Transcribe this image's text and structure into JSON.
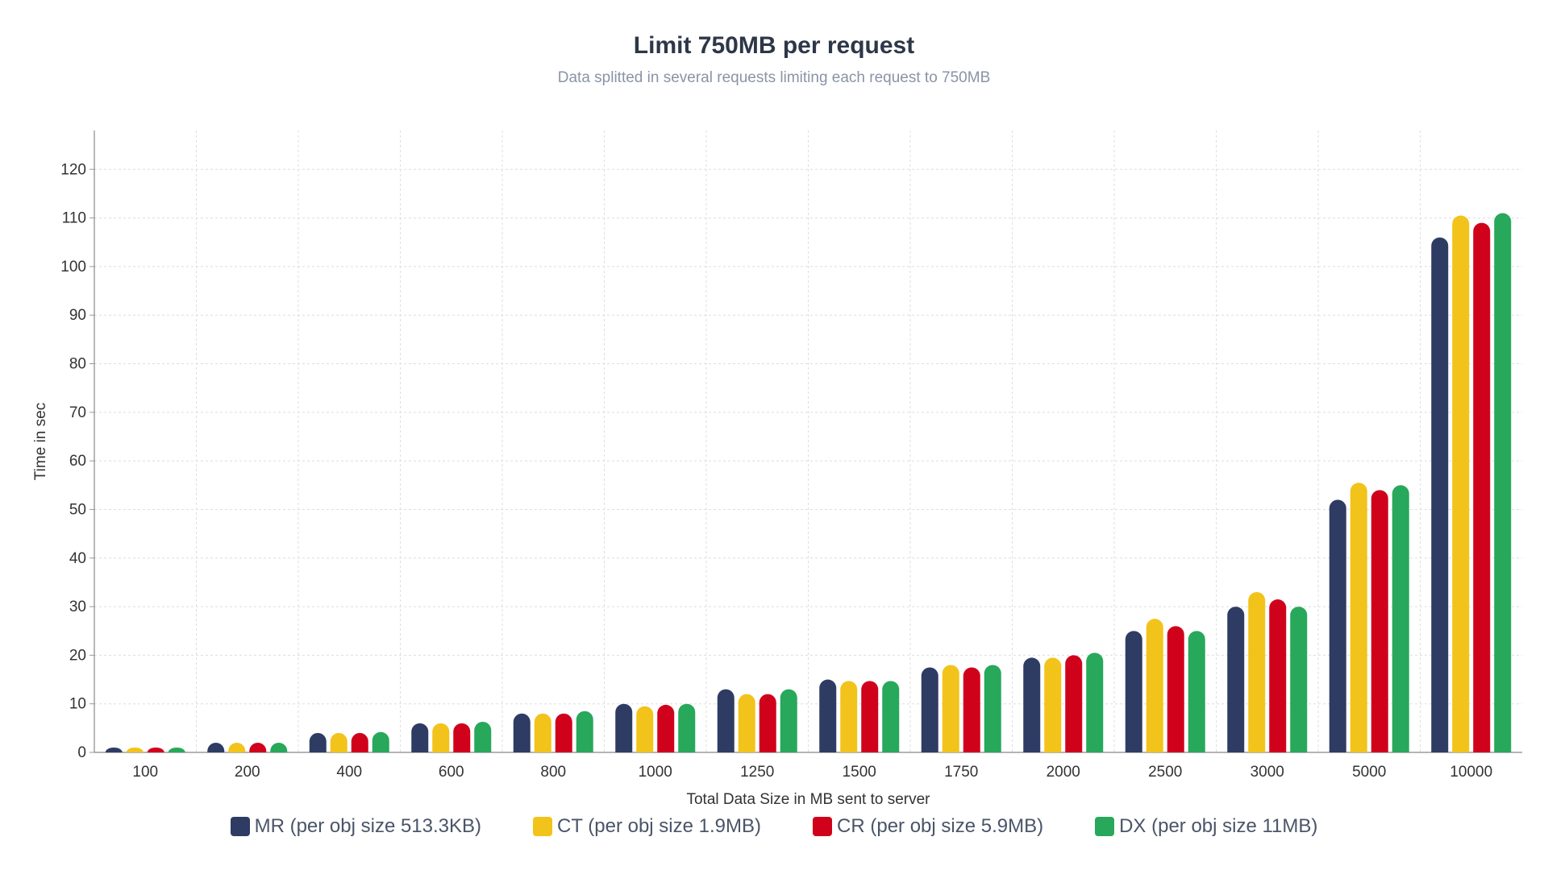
{
  "chart_data": {
    "type": "bar",
    "title": "Limit 750MB per request",
    "subtitle": "Data splitted in several requests limiting each request to 750MB",
    "xlabel": "Total Data Size in MB sent to server",
    "ylabel": "Time in sec",
    "ylim": [
      0,
      128
    ],
    "yticks": [
      0,
      10,
      20,
      30,
      40,
      50,
      60,
      70,
      80,
      90,
      100,
      110,
      120
    ],
    "grid": true,
    "legend_position": "bottom",
    "categories": [
      "100",
      "200",
      "400",
      "600",
      "800",
      "1000",
      "1250",
      "1500",
      "1750",
      "2000",
      "2500",
      "3000",
      "5000",
      "10000"
    ],
    "series": [
      {
        "name": "MR (per obj size 513.3KB)",
        "color": "#2e3c64",
        "values": [
          1,
          2,
          4,
          6,
          8,
          10,
          13,
          15,
          17.5,
          19.5,
          25,
          30,
          52,
          106
        ]
      },
      {
        "name": "CT (per obj size 1.9MB)",
        "color": "#f2c31a",
        "values": [
          1,
          2,
          4,
          6,
          8,
          9.5,
          12,
          14.7,
          18,
          19.5,
          27.5,
          33,
          55.5,
          110.5
        ]
      },
      {
        "name": "CR (per obj size 5.9MB)",
        "color": "#d0021b",
        "values": [
          1,
          2,
          4,
          6,
          8,
          9.8,
          12,
          14.7,
          17.5,
          20,
          26,
          31.5,
          54,
          109
        ]
      },
      {
        "name": "DX (per obj size 11MB)",
        "color": "#27a85b",
        "values": [
          1,
          2,
          4.2,
          6.3,
          8.5,
          10,
          13,
          14.7,
          18,
          20.5,
          25,
          30,
          55,
          111
        ]
      }
    ]
  }
}
